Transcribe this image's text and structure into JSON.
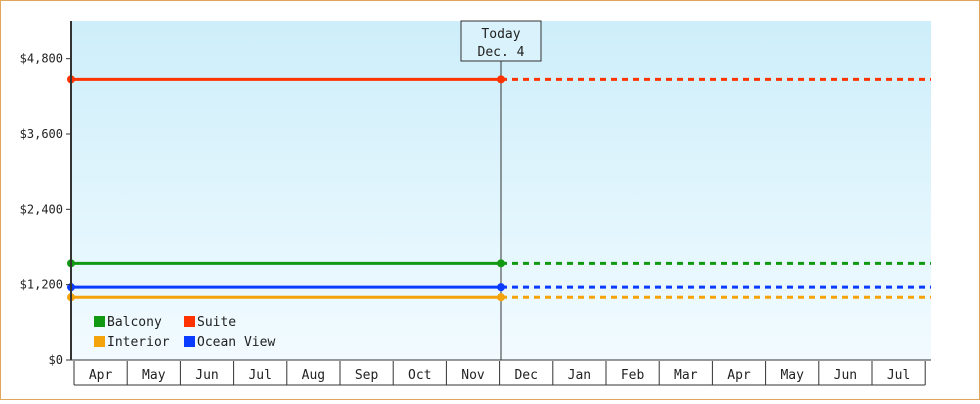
{
  "chart_data": {
    "type": "line",
    "ylim": [
      0,
      5400
    ],
    "y_ticks": [
      0,
      1200,
      2400,
      3600,
      4800
    ],
    "y_tick_labels": [
      "$0",
      "$1,200",
      "$2,400",
      "$3,600",
      "$4,800"
    ],
    "x_range_months": [
      "Apr",
      "May",
      "Jun",
      "Jul",
      "Aug",
      "Sep",
      "Oct",
      "Nov",
      "Dec",
      "Jan",
      "Feb",
      "Mar",
      "Apr",
      "May",
      "Jun",
      "Jul"
    ],
    "today_index": 8,
    "today_label": [
      "Today",
      "Dec. 4"
    ],
    "series": [
      {
        "name": "Balcony",
        "color": "#119911",
        "value": 1540
      },
      {
        "name": "Suite",
        "color": "#ff3300",
        "value": 4470
      },
      {
        "name": "Interior",
        "color": "#f5a30a",
        "value": 1000
      },
      {
        "name": "Ocean View",
        "color": "#0a3cff",
        "value": 1160
      }
    ],
    "style": {
      "solid_until": "today",
      "dashed_after": "today",
      "background_gradient": [
        "#cdeefa",
        "#f2fbff"
      ],
      "grid": false,
      "legend_placement": "bottom-left"
    }
  }
}
